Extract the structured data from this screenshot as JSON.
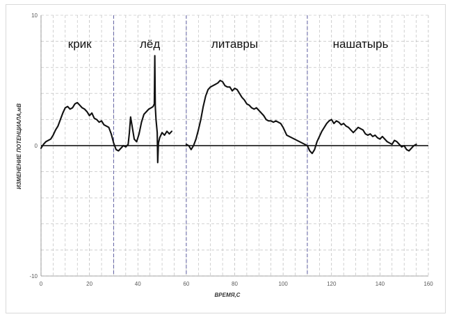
{
  "chart_data": {
    "type": "line",
    "title": "",
    "xlabel": "ВРЕМЯ,С",
    "ylabel": "ИЗМЕНЕНИЕ ПОТЕНЦИАЛА,мВ",
    "xlim": [
      0,
      160
    ],
    "ylim": [
      -10,
      10
    ],
    "x_ticks": [
      0,
      20,
      40,
      60,
      80,
      100,
      120,
      140,
      160
    ],
    "y_ticks": [
      -10,
      0,
      10
    ],
    "x_tick_labels": [
      "0",
      "20",
      "40",
      "60",
      "80",
      "100",
      "120",
      "140",
      "160"
    ],
    "y_tick_labels": [
      "-10",
      "0",
      "10"
    ],
    "grid": true,
    "zero_line": true,
    "legend": "none",
    "colors": {
      "line": "#111111",
      "grid": "#b5b5b5",
      "segment_divider": "#6b6ba8",
      "frame": "#d9d9d9"
    },
    "segment_dividers": [
      30,
      60,
      110
    ],
    "annotations": [
      {
        "text": "крик",
        "x": 16,
        "y": 7.5
      },
      {
        "text": "лёд",
        "x": 45,
        "y": 7.5
      },
      {
        "text": "литавры",
        "x": 80,
        "y": 7.5
      },
      {
        "text": "нашатырь",
        "x": 132,
        "y": 7.5
      }
    ],
    "series": [
      {
        "segments": [
          [
            [
              0,
              -0.2
            ],
            [
              1,
              0.1
            ],
            [
              2,
              0.3
            ],
            [
              3,
              0.4
            ],
            [
              4,
              0.5
            ],
            [
              5,
              0.8
            ],
            [
              6,
              1.2
            ],
            [
              7,
              1.5
            ],
            [
              8,
              2.0
            ],
            [
              9,
              2.5
            ],
            [
              10,
              2.9
            ],
            [
              11,
              3.0
            ],
            [
              12,
              2.8
            ],
            [
              13,
              2.9
            ],
            [
              14,
              3.2
            ],
            [
              15,
              3.3
            ],
            [
              16,
              3.1
            ],
            [
              17,
              2.9
            ],
            [
              18,
              2.8
            ],
            [
              19,
              2.6
            ],
            [
              20,
              2.3
            ],
            [
              21,
              2.5
            ],
            [
              22,
              2.1
            ],
            [
              23,
              2.0
            ],
            [
              24,
              1.8
            ],
            [
              25,
              1.9
            ],
            [
              26,
              1.6
            ],
            [
              27,
              1.5
            ],
            [
              28,
              1.4
            ],
            [
              29,
              0.9
            ],
            [
              30,
              0.2
            ],
            [
              31,
              -0.3
            ],
            [
              32,
              -0.4
            ],
            [
              33,
              -0.2
            ],
            [
              34,
              0.0
            ],
            [
              35,
              -0.1
            ],
            [
              36,
              0.1
            ],
            [
              36.5,
              1.0
            ],
            [
              37,
              2.2
            ],
            [
              37.8,
              1.3
            ],
            [
              38.5,
              0.5
            ],
            [
              39.5,
              0.3
            ],
            [
              40.5,
              0.9
            ],
            [
              41.5,
              1.8
            ],
            [
              42.5,
              2.4
            ],
            [
              43.5,
              2.6
            ],
            [
              44.5,
              2.8
            ],
            [
              45.5,
              2.9
            ],
            [
              46.3,
              3.0
            ],
            [
              46.8,
              3.2
            ],
            [
              47.0,
              6.9
            ],
            [
              47.2,
              3.0
            ],
            [
              47.5,
              2.0
            ],
            [
              48.0,
              1.0
            ],
            [
              48.2,
              -1.3
            ],
            [
              48.5,
              0.2
            ],
            [
              49,
              0.6
            ],
            [
              50,
              1.0
            ],
            [
              51,
              0.8
            ],
            [
              52,
              1.1
            ],
            [
              53,
              0.9
            ],
            [
              54,
              1.1
            ]
          ],
          [
            [
              60,
              0.1
            ],
            [
              61,
              0.0
            ],
            [
              62,
              -0.3
            ],
            [
              63,
              0.0
            ],
            [
              64,
              0.5
            ],
            [
              65,
              1.2
            ],
            [
              66,
              2.0
            ],
            [
              67,
              3.0
            ],
            [
              68,
              3.8
            ],
            [
              69,
              4.3
            ],
            [
              70,
              4.5
            ],
            [
              71,
              4.6
            ],
            [
              72,
              4.7
            ],
            [
              73,
              4.8
            ],
            [
              74,
              5.0
            ],
            [
              75,
              4.9
            ],
            [
              76,
              4.6
            ],
            [
              77,
              4.5
            ],
            [
              78,
              4.5
            ],
            [
              79,
              4.2
            ],
            [
              80,
              4.4
            ],
            [
              81,
              4.3
            ],
            [
              82,
              4.0
            ],
            [
              83,
              3.7
            ],
            [
              84,
              3.5
            ],
            [
              85,
              3.2
            ],
            [
              86,
              3.1
            ],
            [
              87,
              2.9
            ],
            [
              88,
              2.8
            ],
            [
              89,
              2.9
            ],
            [
              90,
              2.7
            ],
            [
              91,
              2.5
            ],
            [
              92,
              2.3
            ],
            [
              93,
              2.0
            ],
            [
              94,
              1.9
            ],
            [
              95,
              1.9
            ],
            [
              96,
              1.8
            ],
            [
              97,
              1.9
            ],
            [
              98,
              1.8
            ],
            [
              99,
              1.7
            ],
            [
              100,
              1.4
            ],
            [
              101,
              1.0
            ],
            [
              101.5,
              0.8
            ],
            [
              110,
              0.0
            ],
            [
              111,
              -0.4
            ],
            [
              112,
              -0.6
            ],
            [
              113,
              -0.3
            ],
            [
              114,
              0.3
            ],
            [
              115,
              0.7
            ],
            [
              116,
              1.1
            ],
            [
              117,
              1.4
            ],
            [
              118,
              1.7
            ],
            [
              119,
              1.9
            ],
            [
              120,
              2.0
            ],
            [
              121,
              1.7
            ],
            [
              122,
              1.9
            ],
            [
              123,
              1.8
            ],
            [
              124,
              1.6
            ],
            [
              125,
              1.7
            ],
            [
              126,
              1.5
            ],
            [
              127,
              1.4
            ],
            [
              128,
              1.2
            ],
            [
              129,
              1.0
            ],
            [
              130,
              1.2
            ],
            [
              131,
              1.4
            ],
            [
              132,
              1.3
            ],
            [
              133,
              1.2
            ],
            [
              134,
              0.9
            ],
            [
              135,
              0.8
            ],
            [
              136,
              0.9
            ],
            [
              137,
              0.7
            ],
            [
              138,
              0.8
            ],
            [
              139,
              0.6
            ],
            [
              140,
              0.5
            ],
            [
              141,
              0.7
            ],
            [
              142,
              0.5
            ],
            [
              143,
              0.3
            ],
            [
              144,
              0.2
            ],
            [
              145,
              0.1
            ],
            [
              146,
              0.4
            ],
            [
              147,
              0.3
            ],
            [
              148,
              0.1
            ],
            [
              149,
              -0.1
            ],
            [
              150,
              0.0
            ],
            [
              151,
              -0.3
            ],
            [
              152,
              -0.4
            ],
            [
              153,
              -0.2
            ],
            [
              154,
              0.0
            ],
            [
              155,
              0.1
            ]
          ]
        ]
      }
    ]
  }
}
